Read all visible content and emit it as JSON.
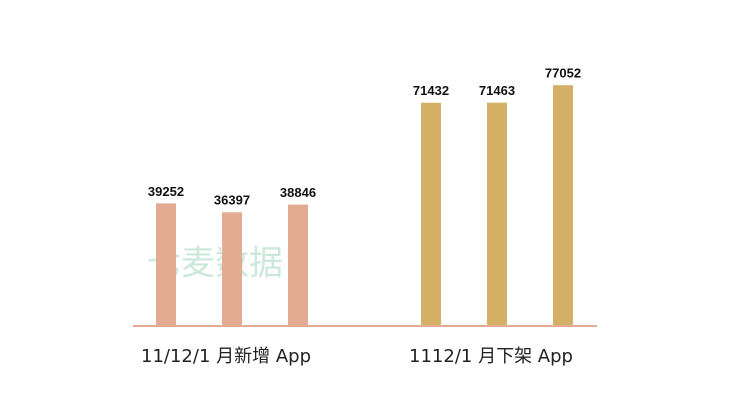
{
  "chart_data": {
    "type": "bar",
    "watermark": "七麦数据",
    "groups": [
      {
        "label": "11/12/1 月新增 App",
        "color": "#e3ab92",
        "values": [
          39252,
          36397,
          38846
        ]
      },
      {
        "label": "1112/1 月下架 App",
        "color": "#d4b066",
        "values": [
          71432,
          71463,
          77052
        ]
      }
    ],
    "axis_color": "#e3ab92",
    "ylim": [
      0,
      80000
    ]
  }
}
